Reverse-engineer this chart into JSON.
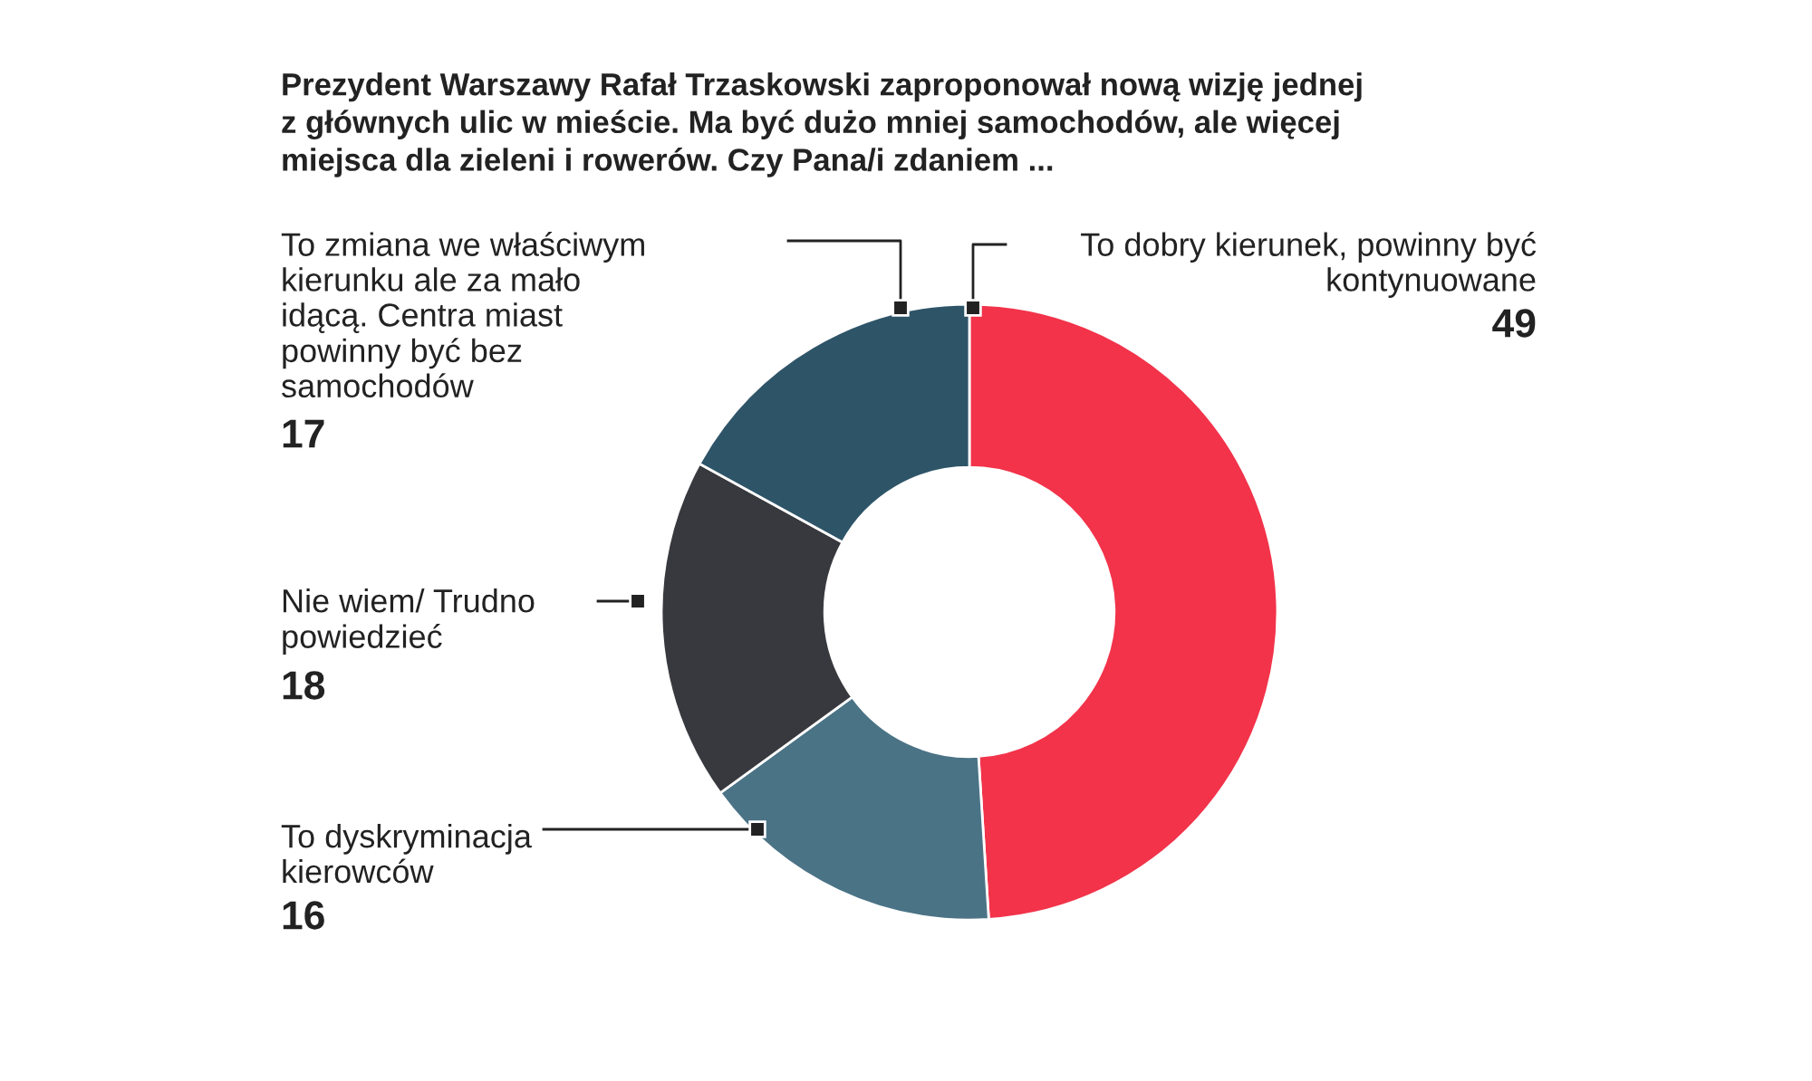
{
  "chart_data": {
    "type": "donut",
    "title": "Prezydent Warszawy Rafał Trzaskowski zaproponował nową wizję jednej\nz głównych ulic w mieście. Ma być dużo mniej samochodów, ale więcej\nmiejsca dla zieleni i rowerów. Czy Pana/i zdaniem ...",
    "categories": [
      "To dobry kierunek, powinny być\nkontynuowane",
      "To dyskryminacja\nkierowców",
      "Nie wiem/ Trudno\npowiedzieć",
      "To zmiana we właściwym\nkierunku ale za mało\nidącą. Centra miast\npowinny być bez\nsamochodów"
    ],
    "values": [
      49,
      16,
      18,
      17
    ],
    "colors": [
      "#f2334a",
      "#4b7386",
      "#38393e",
      "#2e5468"
    ],
    "data_labels": true
  }
}
